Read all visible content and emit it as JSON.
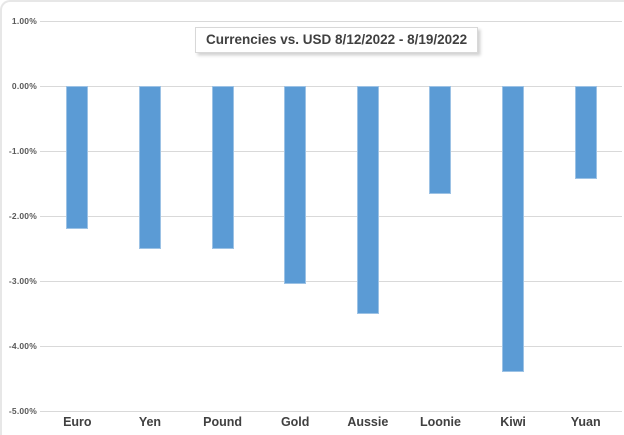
{
  "chart_data": {
    "type": "bar",
    "title": "Currencies vs. USD 8/12/2022 - 8/19/2022",
    "categories": [
      "Euro",
      "Yen",
      "Pound",
      "Gold",
      "Aussie",
      "Loonie",
      "Kiwi",
      "Yuan"
    ],
    "values": [
      -2.2,
      -2.5,
      -2.5,
      -3.05,
      -3.5,
      -1.65,
      -4.4,
      -1.43
    ],
    "unit": "%",
    "xlabel": "",
    "ylabel": "",
    "ylim": [
      1,
      -5
    ],
    "yticks": [
      {
        "v": 1,
        "label": "1.00%"
      },
      {
        "v": 0,
        "label": "0.00%"
      },
      {
        "v": -1,
        "label": "-1.00%"
      },
      {
        "v": -2,
        "label": "-2.00%"
      },
      {
        "v": -3,
        "label": "-3.00%"
      },
      {
        "v": -4,
        "label": "-4.00%"
      },
      {
        "v": -5,
        "label": "-5.00%"
      }
    ],
    "grid": true,
    "legend": false,
    "colors": {
      "bar_fill": "#5B9BD5",
      "bar_border": "#9CC2E5",
      "gridline": "#D9D9D9",
      "tick_label": "#595959",
      "category_label": "#404040",
      "title_text": "#404040",
      "background": "#FFFFFF"
    }
  }
}
